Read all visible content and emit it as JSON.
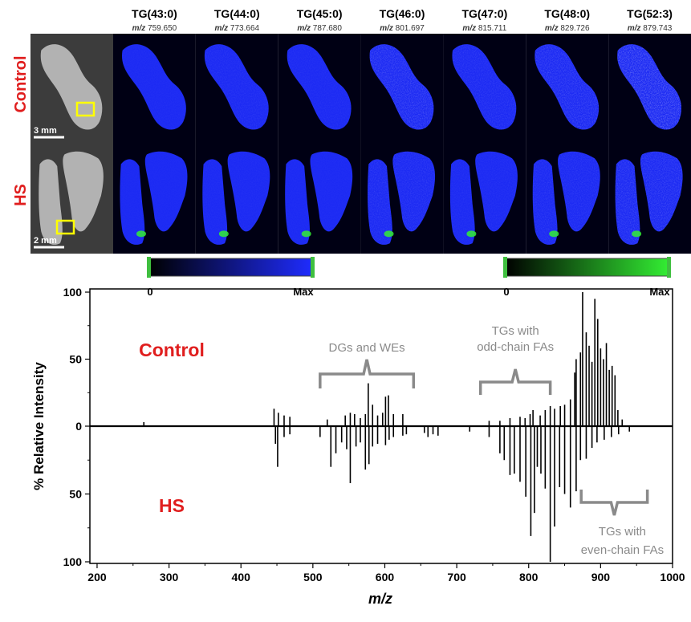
{
  "panels": {
    "columns": [
      {
        "name": "TG(43:0)",
        "mz": "759.650",
        "green": 0.1
      },
      {
        "name": "TG(44:0)",
        "mz": "773.664",
        "green": 0.2
      },
      {
        "name": "TG(45:0)",
        "mz": "787.680",
        "green": 0.15
      },
      {
        "name": "TG(46:0)",
        "mz": "801.697",
        "green": 0.55
      },
      {
        "name": "TG(47:0)",
        "mz": "815.711",
        "green": 0.3
      },
      {
        "name": "TG(48:0)",
        "mz": "829.726",
        "green": 0.5
      },
      {
        "name": "TG(52:3)",
        "mz": "879.743",
        "green": 0.85
      }
    ],
    "mz_prefix": "m/z",
    "row_labels": [
      "Control",
      "HS"
    ],
    "scale_bars": [
      "3 mm",
      "2 mm"
    ],
    "colorbars": [
      {
        "min": "0",
        "max": "Max",
        "color": "#1f2cff"
      },
      {
        "min": "0",
        "max": "Max",
        "color": "#33ee33"
      }
    ]
  },
  "colors": {
    "label_red": "#e01e1e",
    "annotation_gray": "#8a8a8a",
    "tissue_blue": "#1e2cff",
    "tissue_green": "#2ee02e"
  },
  "chart_data": {
    "type": "line",
    "xlabel": "m/z",
    "ylabel": "% Relative Intensity",
    "xlim": [
      190,
      1000
    ],
    "ylim_top": [
      0,
      100
    ],
    "ylim_bottom": [
      0,
      100
    ],
    "xticks": [
      "200",
      "300",
      "400",
      "500",
      "600",
      "700",
      "800",
      "900",
      "1000"
    ],
    "yticks_top": [
      "0",
      "50",
      "100"
    ],
    "yticks_bottom": [
      "50",
      "100"
    ],
    "series": [
      {
        "name": "Control",
        "peaks": [
          [
            265,
            3
          ],
          [
            446,
            13
          ],
          [
            452,
            10
          ],
          [
            460,
            8
          ],
          [
            468,
            7
          ],
          [
            520,
            5
          ],
          [
            545,
            8
          ],
          [
            552,
            10
          ],
          [
            558,
            9
          ],
          [
            566,
            6
          ],
          [
            573,
            9
          ],
          [
            577,
            32
          ],
          [
            583,
            16
          ],
          [
            590,
            8
          ],
          [
            597,
            10
          ],
          [
            601,
            22
          ],
          [
            605,
            23
          ],
          [
            612,
            9
          ],
          [
            625,
            9
          ],
          [
            745,
            4
          ],
          [
            760,
            4
          ],
          [
            774,
            6
          ],
          [
            788,
            7
          ],
          [
            795,
            6
          ],
          [
            802,
            9
          ],
          [
            806,
            12
          ],
          [
            816,
            8
          ],
          [
            823,
            12
          ],
          [
            830,
            15
          ],
          [
            836,
            13
          ],
          [
            844,
            15
          ],
          [
            850,
            16
          ],
          [
            858,
            20
          ],
          [
            864,
            40
          ],
          [
            866,
            50
          ],
          [
            872,
            55
          ],
          [
            875,
            100
          ],
          [
            880,
            70
          ],
          [
            884,
            60
          ],
          [
            888,
            48
          ],
          [
            892,
            95
          ],
          [
            896,
            80
          ],
          [
            900,
            58
          ],
          [
            904,
            50
          ],
          [
            908,
            62
          ],
          [
            912,
            42
          ],
          [
            916,
            45
          ],
          [
            920,
            38
          ],
          [
            924,
            12
          ],
          [
            930,
            5
          ]
        ]
      },
      {
        "name": "HS",
        "peaks": [
          [
            448,
            13
          ],
          [
            451,
            30
          ],
          [
            460,
            8
          ],
          [
            468,
            6
          ],
          [
            510,
            8
          ],
          [
            525,
            30
          ],
          [
            532,
            20
          ],
          [
            540,
            12
          ],
          [
            547,
            17
          ],
          [
            552,
            42
          ],
          [
            560,
            15
          ],
          [
            566,
            12
          ],
          [
            573,
            32
          ],
          [
            578,
            28
          ],
          [
            583,
            15
          ],
          [
            590,
            13
          ],
          [
            601,
            14
          ],
          [
            606,
            10
          ],
          [
            612,
            8
          ],
          [
            625,
            7
          ],
          [
            630,
            6
          ],
          [
            655,
            5
          ],
          [
            660,
            8
          ],
          [
            667,
            6
          ],
          [
            674,
            7
          ],
          [
            718,
            4
          ],
          [
            745,
            8
          ],
          [
            760,
            20
          ],
          [
            766,
            25
          ],
          [
            774,
            36
          ],
          [
            780,
            35
          ],
          [
            788,
            41
          ],
          [
            796,
            52
          ],
          [
            803,
            81
          ],
          [
            808,
            64
          ],
          [
            812,
            30
          ],
          [
            817,
            35
          ],
          [
            823,
            46
          ],
          [
            830,
            100
          ],
          [
            836,
            74
          ],
          [
            843,
            45
          ],
          [
            850,
            50
          ],
          [
            858,
            60
          ],
          [
            866,
            48
          ],
          [
            872,
            25
          ],
          [
            880,
            24
          ],
          [
            888,
            16
          ],
          [
            895,
            12
          ],
          [
            905,
            10
          ],
          [
            915,
            8
          ],
          [
            925,
            6
          ],
          [
            940,
            4
          ]
        ]
      }
    ],
    "labels": {
      "top": "Control",
      "bottom": "HS"
    },
    "annotations": [
      {
        "lines": [
          "DGs and WEs"
        ],
        "x_from": 510,
        "x_to": 640
      },
      {
        "lines": [
          "TGs with",
          "odd-chain FAs"
        ],
        "x_from": 733,
        "x_to": 830
      },
      {
        "lines": [
          "TGs with",
          "even-chain FAs"
        ],
        "x_from": 873,
        "x_to": 965
      }
    ]
  }
}
